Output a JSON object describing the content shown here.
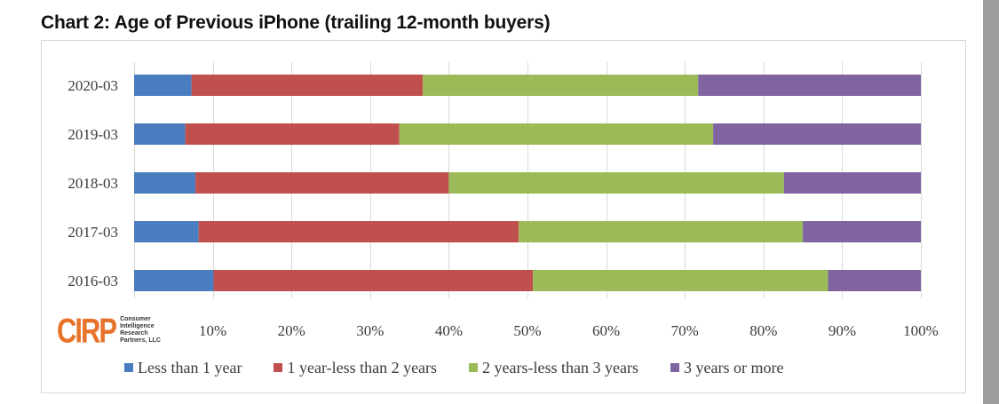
{
  "chart_data": {
    "type": "bar",
    "orientation": "horizontal",
    "stacked": true,
    "title": "Chart 2: Age of Previous iPhone (trailing 12-month buyers)",
    "categories": [
      "2020-03",
      "2019-03",
      "2018-03",
      "2017-03",
      "2016-03"
    ],
    "series": [
      {
        "name": "Less than 1 year",
        "color": "#4a7dbf",
        "values": [
          7.3,
          6.5,
          7.8,
          8.2,
          10.1
        ]
      },
      {
        "name": "1 year-less than 2 years",
        "color": "#c0504d",
        "values": [
          29.4,
          27.2,
          32.2,
          40.7,
          40.6
        ]
      },
      {
        "name": "2 years-less than 3 years",
        "color": "#9bbb59",
        "values": [
          35.0,
          39.9,
          42.6,
          36.1,
          37.5
        ]
      },
      {
        "name": "3 years or more",
        "color": "#8064a2",
        "values": [
          28.3,
          26.4,
          17.4,
          15.0,
          11.8
        ]
      }
    ],
    "xlim": [
      0,
      100
    ],
    "xticks": [
      "10%",
      "20%",
      "30%",
      "40%",
      "50%",
      "60%",
      "70%",
      "80%",
      "90%",
      "100%"
    ],
    "grid": true,
    "legend_position": "bottom"
  },
  "logo": {
    "mark": "CIRP",
    "lines": [
      "Consumer",
      "Intelligence",
      "Research",
      "Partners, LLC"
    ]
  }
}
